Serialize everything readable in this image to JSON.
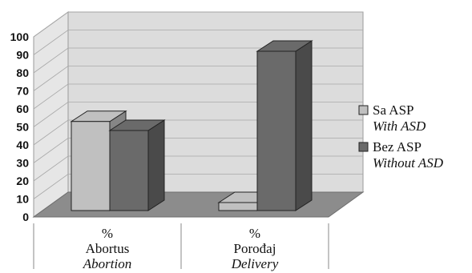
{
  "chart_data": {
    "type": "bar",
    "categories": [
      {
        "line1": "%",
        "line2": "Abortus",
        "line3": "Abortion"
      },
      {
        "line1": "%",
        "line2": "Porođaj",
        "line3": "Delivery"
      }
    ],
    "series": [
      {
        "name": "Sa ASP",
        "name_en": "With ASD",
        "values": [
          53,
          8
        ],
        "color": "#c0c0c0"
      },
      {
        "name": "Bez ASP",
        "name_en": "Without ASD",
        "values": [
          48,
          92
        ],
        "color": "#6a6a6a"
      }
    ],
    "yticks": [
      0,
      10,
      20,
      30,
      40,
      50,
      60,
      70,
      80,
      90,
      100
    ],
    "ylim": [
      0,
      100
    ],
    "grid": true,
    "legend_position": "right"
  }
}
